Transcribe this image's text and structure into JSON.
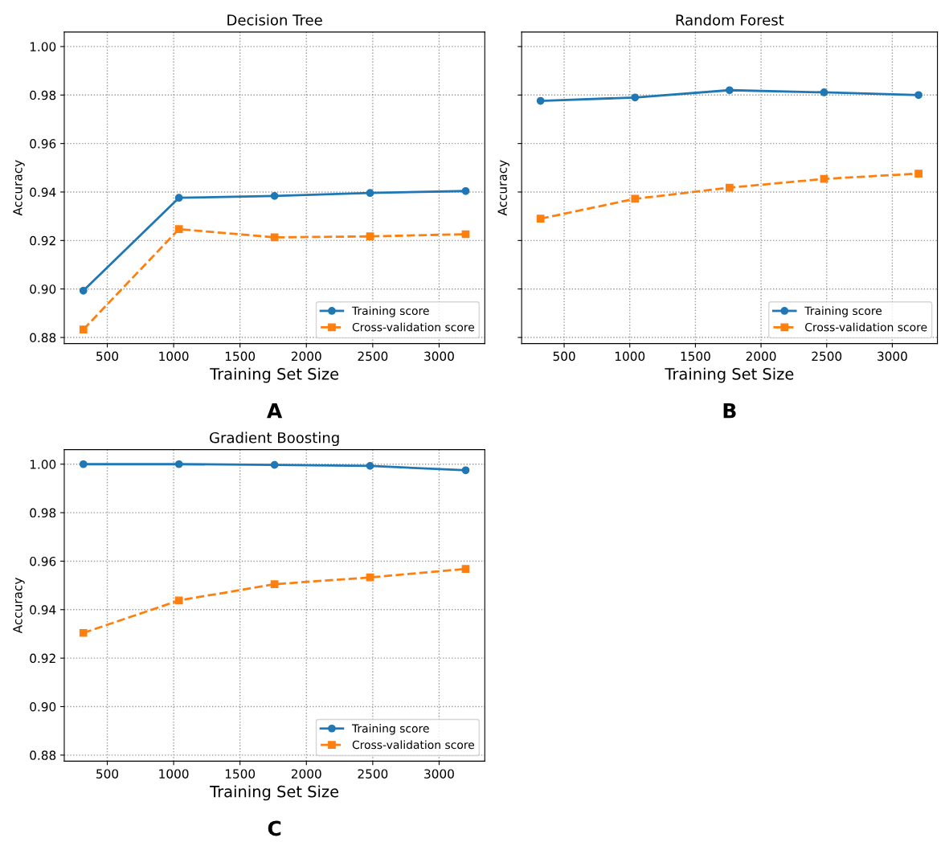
{
  "chart_data": [
    {
      "type": "line",
      "title": "Decision Tree",
      "xlabel": "Training Set Size",
      "ylabel": "Accuracy",
      "annotations": [
        "A"
      ],
      "x": [
        320,
        1040,
        1760,
        2480,
        3200
      ],
      "xlim": [
        176,
        3344
      ],
      "xticks": [
        500,
        1000,
        1500,
        2000,
        2500,
        3000
      ],
      "ylim": [
        0.8775,
        1.006
      ],
      "yticks": [
        {
          "value": 0.88,
          "label": "0.88"
        },
        {
          "value": 0.9,
          "label": "0.90"
        },
        {
          "value": 0.92,
          "label": "0.92"
        },
        {
          "value": 0.94,
          "label": "0.94"
        },
        {
          "value": 0.96,
          "label": "0.96"
        },
        {
          "value": 0.98,
          "label": "0.98"
        },
        {
          "value": 1.0,
          "label": "1.00"
        }
      ],
      "grid": true,
      "legend": "lower right",
      "series": [
        {
          "name": "Training score",
          "color": "#1f77b4",
          "marker": "circle",
          "line_style": "solid",
          "values": [
            0.8993,
            0.9376,
            0.9384,
            0.9396,
            0.9404
          ]
        },
        {
          "name": "Cross-validation score",
          "color": "#ff7f0e",
          "marker": "square",
          "line_style": "dashed",
          "values": [
            0.8833,
            0.9247,
            0.9213,
            0.9217,
            0.9226
          ]
        }
      ]
    },
    {
      "type": "line",
      "title": "Random Forest",
      "xlabel": "Training Set Size",
      "ylabel": "Accuracy",
      "annotations": [
        "B"
      ],
      "x": [
        320,
        1040,
        1760,
        2480,
        3200
      ],
      "xlim": [
        176,
        3344
      ],
      "xticks": [
        500,
        1000,
        1500,
        2000,
        2500,
        3000
      ],
      "ylim": [
        0.8775,
        1.006
      ],
      "yticks": [
        0.88,
        0.9,
        0.92,
        0.94,
        0.96,
        0.98,
        1.0
      ],
      "tick_labels": "x",
      "grid": true,
      "legend": "lower right",
      "series": [
        {
          "name": "Training score",
          "color": "#1f77b4",
          "marker": "circle",
          "line_style": "solid",
          "values": [
            0.9776,
            0.979,
            0.982,
            0.9811,
            0.98
          ]
        },
        {
          "name": "Cross-validation score",
          "color": "#ff7f0e",
          "marker": "square",
          "line_style": "dashed",
          "values": [
            0.929,
            0.9372,
            0.9418,
            0.9454,
            0.9476
          ]
        }
      ]
    },
    {
      "type": "line",
      "title": "Gradient Boosting",
      "xlabel": "Training Set Size",
      "ylabel": "Accuracy",
      "annotations": [
        "C"
      ],
      "x": [
        320,
        1040,
        1760,
        2480,
        3200
      ],
      "xlim": [
        176,
        3344
      ],
      "xticks": [
        500,
        1000,
        1500,
        2000,
        2500,
        3000
      ],
      "ylim": [
        0.8775,
        1.006
      ],
      "yticks": [
        {
          "value": 0.88,
          "label": "0.88"
        },
        {
          "value": 0.9,
          "label": "0.90"
        },
        {
          "value": 0.92,
          "label": "0.92"
        },
        {
          "value": 0.94,
          "label": "0.94"
        },
        {
          "value": 0.96,
          "label": "0.96"
        },
        {
          "value": 0.98,
          "label": "0.98"
        },
        {
          "value": 1.0,
          "label": "1.00"
        }
      ],
      "grid": true,
      "legend": "lower right",
      "series": [
        {
          "name": "Training score",
          "color": "#1f77b4",
          "marker": "circle",
          "line_style": "solid",
          "values": [
            1.0,
            1.0,
            0.9997,
            0.9993,
            0.9975
          ]
        },
        {
          "name": "Cross-validation score",
          "color": "#ff7f0e",
          "marker": "square",
          "line_style": "dashed",
          "values": [
            0.9304,
            0.9438,
            0.9505,
            0.9533,
            0.9568
          ]
        }
      ]
    }
  ]
}
